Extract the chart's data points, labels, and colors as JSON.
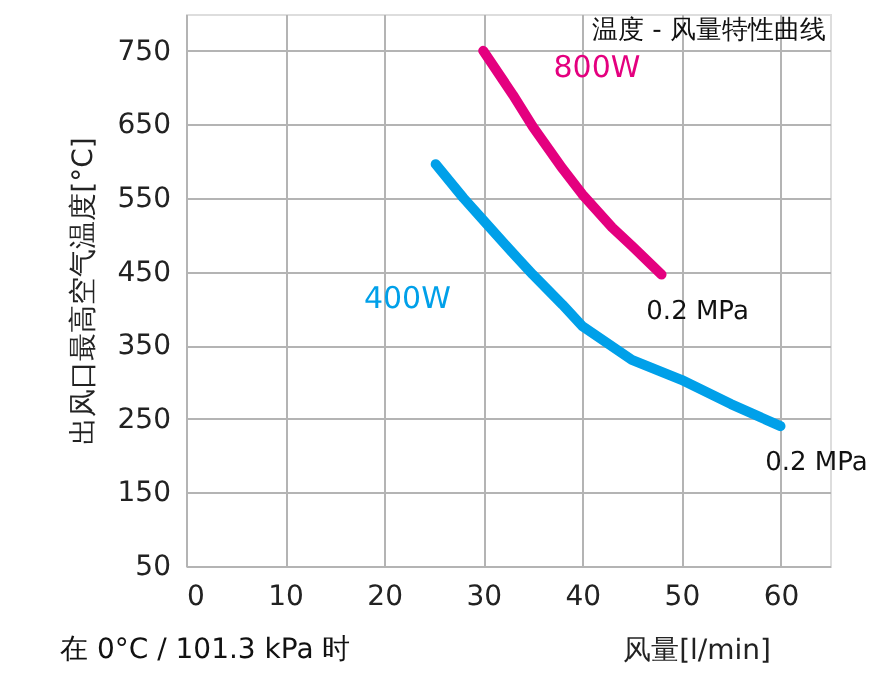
{
  "chart_data": {
    "type": "line",
    "title": "温度 - 风量特性曲线",
    "xlabel": "风量[l/min]",
    "ylabel": "出风口最高空气温度[°C]",
    "annotations": [
      "在 0°C / 101.3 kPa 时",
      {
        "text": "0.2 MPa",
        "x": 48,
        "y": 446
      },
      {
        "text": "0.2 MPa",
        "x": 60,
        "y": 240
      }
    ],
    "series": [
      {
        "name": "800W",
        "color": "#e4007f",
        "x": [
          30,
          33,
          35,
          38,
          40,
          43,
          45,
          48
        ],
        "values": [
          750,
          690,
          647,
          590,
          555,
          510,
          485,
          446
        ]
      },
      {
        "name": "400W",
        "color": "#00a0e9",
        "x": [
          25.2,
          28,
          30,
          33,
          35,
          38,
          40,
          45,
          50,
          55,
          60
        ],
        "values": [
          596,
          550,
          520,
          475,
          446,
          405,
          376,
          330,
          303,
          270,
          240
        ]
      }
    ],
    "xlim": [
      0,
      65
    ],
    "ylim": [
      50,
      800
    ],
    "xticks": [
      0,
      10,
      20,
      30,
      40,
      50,
      60
    ],
    "yticks": [
      50,
      150,
      250,
      350,
      450,
      550,
      650,
      750
    ],
    "grid": true,
    "marker": "none",
    "line_style": "solid"
  }
}
